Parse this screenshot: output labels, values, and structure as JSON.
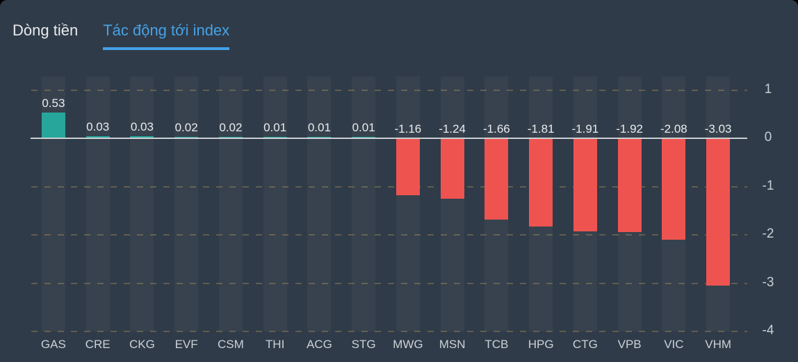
{
  "tabs": [
    {
      "label": "Dòng tiền",
      "active": false
    },
    {
      "label": "Tác động tới index",
      "active": true
    }
  ],
  "colors": {
    "card_background": "#2f3b48",
    "column_band": "#37424e",
    "positive_bar": "#27a79b",
    "negative_bar": "#ef5350",
    "zero_line": "#ccd0d4",
    "dashed_grid": "#c59f60",
    "value_text": "#e9ecef",
    "axis_text": "#c9ced4",
    "active_tab": "#47a2e6"
  },
  "chart_data": {
    "type": "bar",
    "title": "Tác động tới index",
    "categories": [
      "GAS",
      "CRE",
      "CKG",
      "EVF",
      "CSM",
      "THI",
      "ACG",
      "STG",
      "MWG",
      "MSN",
      "TCB",
      "HPG",
      "CTG",
      "VPB",
      "VIC",
      "VHM"
    ],
    "values": [
      0.53,
      0.03,
      0.03,
      0.02,
      0.02,
      0.01,
      0.01,
      0.01,
      -1.16,
      -1.24,
      -1.66,
      -1.81,
      -1.91,
      -1.92,
      -2.08,
      -3.03
    ],
    "value_labels": [
      "0.53",
      "0.03",
      "0.03",
      "0.02",
      "0.02",
      "0.01",
      "0.01",
      "0.01",
      "-1.16",
      "-1.24",
      "-1.66",
      "-1.81",
      "-1.91",
      "-1.92",
      "-2.08",
      "-3.03"
    ],
    "yticks": [
      1,
      0,
      -1,
      -2,
      -3,
      -4
    ],
    "ytick_labels": [
      "1",
      "0",
      "-1",
      "-2",
      "-3",
      "-4"
    ],
    "ylim": [
      -4,
      1
    ],
    "xlabel": "",
    "ylabel": "",
    "legend_position": "none",
    "grid": "horizontal-dashed",
    "axis_side": "right"
  }
}
